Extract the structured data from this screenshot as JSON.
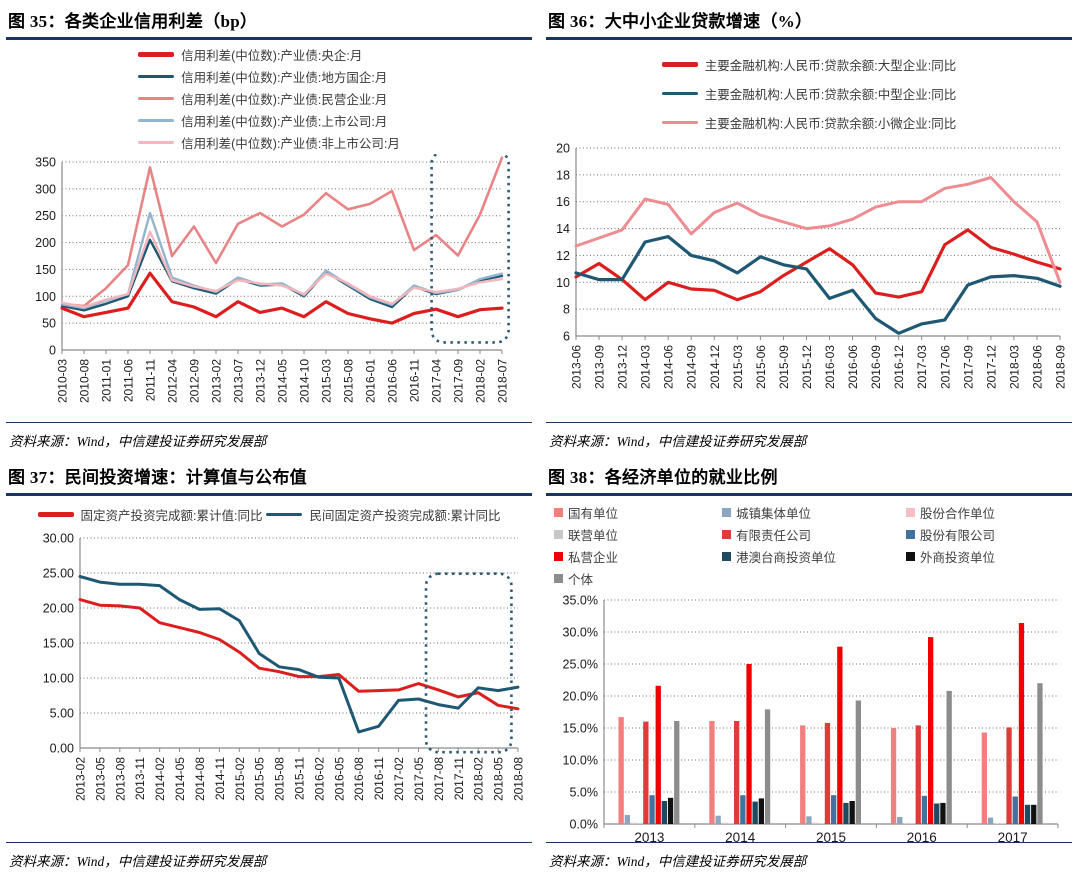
{
  "accent_color": "#17375E",
  "source_note": "资料来源：Wind，中信建投证券研究发展部",
  "chart_data": [
    {
      "type": "line",
      "title": "图 35：各类企业信用利差（bp）",
      "ylim": [
        0,
        350
      ],
      "ytick_step": 50,
      "yfmt": "int",
      "grid": true,
      "legend": {
        "position": "top",
        "layout": "column",
        "swatch": "line"
      },
      "x_labels": [
        "2010-03",
        "2010-08",
        "2011-01",
        "2011-06",
        "2011-11",
        "2012-04",
        "2012-09",
        "2013-02",
        "2013-07",
        "2013-12",
        "2014-05",
        "2014-10",
        "2015-03",
        "2015-08",
        "2016-01",
        "2016-06",
        "2016-11",
        "2017-04",
        "2017-09",
        "2018-02",
        "2018-07"
      ],
      "series": [
        {
          "name": "信用利差(中位数):产业债:央企:月",
          "color": "#DC1E1E",
          "width": 3.2,
          "values": [
            78,
            62,
            70,
            78,
            143,
            90,
            80,
            62,
            90,
            70,
            78,
            62,
            90,
            68,
            58,
            50,
            68,
            76,
            62,
            75,
            78
          ]
        },
        {
          "name": "信用利差(中位数):产业债:地方国企:月",
          "color": "#1F5873",
          "width": 2.4,
          "values": [
            82,
            74,
            86,
            100,
            205,
            128,
            115,
            105,
            132,
            120,
            122,
            100,
            145,
            120,
            95,
            80,
            118,
            104,
            112,
            130,
            138
          ]
        },
        {
          "name": "信用利差(中位数):产业债:民营企业:月",
          "color": "#E98486",
          "width": 2.6,
          "values": [
            86,
            82,
            115,
            158,
            340,
            175,
            230,
            162,
            235,
            255,
            230,
            252,
            292,
            262,
            272,
            296,
            186,
            214,
            176,
            252,
            358
          ]
        },
        {
          "name": "信用利差(中位数):产业债:上市公司:月",
          "color": "#93B5CC",
          "width": 2.4,
          "values": [
            85,
            78,
            92,
            104,
            255,
            135,
            120,
            108,
            135,
            122,
            124,
            102,
            148,
            122,
            98,
            84,
            120,
            106,
            112,
            132,
            142
          ]
        },
        {
          "name": "信用利差(中位数):产业债:非上市公司:月",
          "color": "#F4B6BC",
          "width": 2.4,
          "values": [
            88,
            80,
            94,
            104,
            220,
            130,
            118,
            110,
            130,
            124,
            120,
            104,
            142,
            124,
            100,
            86,
            116,
            108,
            114,
            126,
            132
          ]
        }
      ],
      "annotation_box": {
        "x0": 0.84,
        "x1": 1.015,
        "y0": -0.055,
        "y1": 0.96,
        "color": "#2E5972"
      }
    },
    {
      "type": "line",
      "title": "图 36：大中小企业贷款增速（%）",
      "ylim": [
        6,
        20
      ],
      "ytick_step": 2,
      "yfmt": "int",
      "grid": true,
      "legend": {
        "position": "top",
        "layout": "column-roomy",
        "swatch": "line"
      },
      "x_labels": [
        "2013-06",
        "2013-09",
        "2013-12",
        "2014-03",
        "2014-06",
        "2014-09",
        "2014-12",
        "2015-03",
        "2015-06",
        "2015-09",
        "2015-12",
        "2016-03",
        "2016-06",
        "2016-09",
        "2016-12",
        "2017-03",
        "2017-06",
        "2017-09",
        "2017-12",
        "2018-03",
        "2018-06",
        "2018-09"
      ],
      "series": [
        {
          "name": "主要金融机构:人民币:贷款余额:大型企业:同比",
          "color": "#DC1E1E",
          "width": 3.2,
          "values": [
            10.4,
            11.4,
            10.2,
            8.7,
            10.0,
            9.5,
            9.4,
            8.7,
            9.3,
            10.5,
            11.5,
            12.5,
            11.3,
            9.2,
            8.9,
            9.3,
            12.8,
            13.9,
            12.6,
            12.1,
            11.5,
            11.0
          ]
        },
        {
          "name": "主要金融机构:人民币:贷款余额:中型企业:同比",
          "color": "#1F5873",
          "width": 3.2,
          "values": [
            10.7,
            10.2,
            10.2,
            13.0,
            13.4,
            12.0,
            11.6,
            10.7,
            11.9,
            11.3,
            11.0,
            8.8,
            9.4,
            7.3,
            6.2,
            6.9,
            7.2,
            9.8,
            10.4,
            10.5,
            10.3,
            9.7
          ]
        },
        {
          "name": "主要金融机构:人民币:贷款余额:小微企业:同比",
          "color": "#EE8C92",
          "width": 3.0,
          "values": [
            12.7,
            13.3,
            13.9,
            16.2,
            15.8,
            13.6,
            15.2,
            15.9,
            15.0,
            14.5,
            14.0,
            14.2,
            14.7,
            15.6,
            16.0,
            16.0,
            17.0,
            17.3,
            17.8,
            16.0,
            14.5,
            10.0
          ]
        }
      ]
    },
    {
      "type": "line",
      "title": "图 37：民间投资增速：计算值与公布值",
      "ylim": [
        0,
        30
      ],
      "ytick_step": 5,
      "yfmt": "2f",
      "grid": true,
      "legend": {
        "position": "top",
        "layout": "row",
        "swatch": "line"
      },
      "x_labels": [
        "2013-02",
        "2013-05",
        "2013-08",
        "2013-11",
        "2014-02",
        "2014-05",
        "2014-08",
        "2014-11",
        "2015-02",
        "2015-05",
        "2015-08",
        "2015-11",
        "2016-02",
        "2016-05",
        "2016-08",
        "2016-11",
        "2017-02",
        "2017-05",
        "2017-08",
        "2017-11",
        "2018-02",
        "2018-05",
        "2018-08"
      ],
      "series": [
        {
          "name": "固定资产投资完成额:累计值:同比",
          "color": "#DC1E1E",
          "width": 3.0,
          "values": [
            21.2,
            20.4,
            20.3,
            20.0,
            17.9,
            17.2,
            16.5,
            15.5,
            13.7,
            11.4,
            10.9,
            10.2,
            10.2,
            10.5,
            8.1,
            8.2,
            8.3,
            9.2,
            8.3,
            7.3,
            7.9,
            6.1,
            5.6
          ]
        },
        {
          "name": "民间固定资产投资完成额:累计同比",
          "color": "#1F5873",
          "width": 3.0,
          "values": [
            24.5,
            23.7,
            23.4,
            23.4,
            23.2,
            21.2,
            19.8,
            19.9,
            18.2,
            13.5,
            11.6,
            11.2,
            10.1,
            10.0,
            2.3,
            3.1,
            6.8,
            7.0,
            6.2,
            5.7,
            8.6,
            8.2,
            8.7
          ]
        }
      ],
      "annotation_box": {
        "x0": 0.79,
        "x1": 0.985,
        "y0": 0.17,
        "y1": 1.02,
        "color": "#2E5972"
      }
    },
    {
      "type": "bar",
      "title": "图 38：各经济单位的就业比例",
      "ylim": [
        0,
        35
      ],
      "ytick_step": 5,
      "yfmt": "pct",
      "grid": true,
      "legend": {
        "position": "top",
        "layout": "grid3",
        "swatch": "square"
      },
      "categories": [
        "2013",
        "2014",
        "2015",
        "2016",
        "2017"
      ],
      "series": [
        {
          "name": "国有单位",
          "color": "#F37E7E",
          "values": [
            16.7,
            16.1,
            15.4,
            15.0,
            14.3
          ]
        },
        {
          "name": "城镇集体单位",
          "color": "#8CA6C0",
          "values": [
            1.4,
            1.3,
            1.2,
            1.1,
            1.0
          ]
        },
        {
          "name": "股份合作单位",
          "color": "#F5BFC3",
          "values": [
            0.2,
            0.2,
            0.2,
            0.15,
            0.1
          ]
        },
        {
          "name": "联营单位",
          "color": "#C8C8C8",
          "values": [
            0.1,
            0.1,
            0.1,
            0.1,
            0.1
          ]
        },
        {
          "name": "有限责任公司",
          "color": "#E03A3A",
          "values": [
            16.0,
            16.1,
            15.8,
            15.4,
            15.1
          ]
        },
        {
          "name": "股份有限公司",
          "color": "#44729E",
          "values": [
            4.5,
            4.5,
            4.5,
            4.4,
            4.3
          ]
        },
        {
          "name": "私营企业",
          "color": "#F00000",
          "values": [
            21.6,
            25.0,
            27.7,
            29.2,
            31.4
          ]
        },
        {
          "name": "港澳台商投资单位",
          "color": "#1E4A60",
          "values": [
            3.6,
            3.5,
            3.3,
            3.2,
            3.0
          ]
        },
        {
          "name": "外商投资单位",
          "color": "#111111",
          "values": [
            4.1,
            4.0,
            3.6,
            3.3,
            3.0
          ]
        },
        {
          "name": "个体",
          "color": "#8C8C8C",
          "values": [
            16.1,
            17.9,
            19.3,
            20.8,
            22.0
          ]
        }
      ]
    }
  ]
}
